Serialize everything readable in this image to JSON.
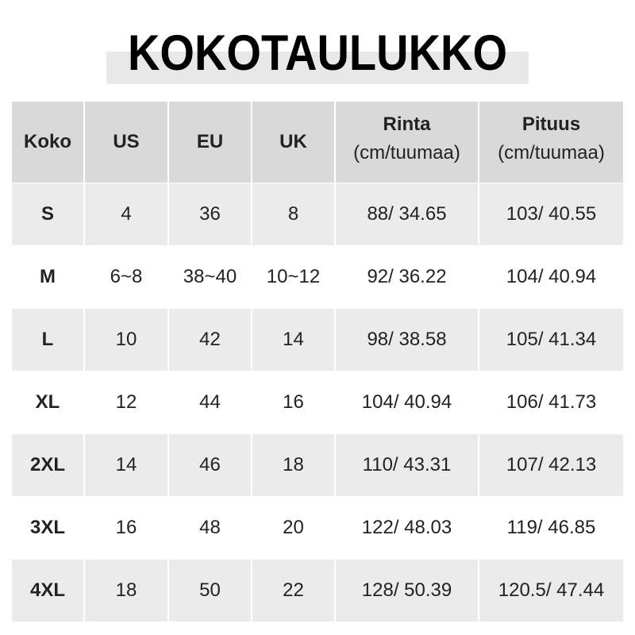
{
  "title": "KOKOTAULUKKO",
  "headers": [
    {
      "label": "Koko",
      "sub": ""
    },
    {
      "label": "US",
      "sub": ""
    },
    {
      "label": "EU",
      "sub": ""
    },
    {
      "label": "UK",
      "sub": ""
    },
    {
      "label": "Rinta",
      "sub": "(cm/tuumaa)"
    },
    {
      "label": "Pituus",
      "sub": "(cm/tuumaa)"
    }
  ],
  "rows": [
    [
      "S",
      "4",
      "36",
      "8",
      "88/ 34.65",
      "103/ 40.55"
    ],
    [
      "M",
      "6~8",
      "38~40",
      "10~12",
      "92/ 36.22",
      "104/ 40.94"
    ],
    [
      "L",
      "10",
      "42",
      "14",
      "98/ 38.58",
      "105/ 41.34"
    ],
    [
      "XL",
      "12",
      "44",
      "16",
      "104/ 40.94",
      "106/ 41.73"
    ],
    [
      "2XL",
      "14",
      "46",
      "18",
      "110/ 43.31",
      "107/ 42.13"
    ],
    [
      "3XL",
      "16",
      "48",
      "20",
      "122/ 48.03",
      "119/ 46.85"
    ],
    [
      "4XL",
      "18",
      "50",
      "22",
      "128/ 50.39",
      "120.5/ 47.44"
    ]
  ],
  "colors": {
    "header_bg": "#d9d9d9",
    "stripe_bg": "#ebebeb",
    "title_bar": "#e8e8e8"
  }
}
